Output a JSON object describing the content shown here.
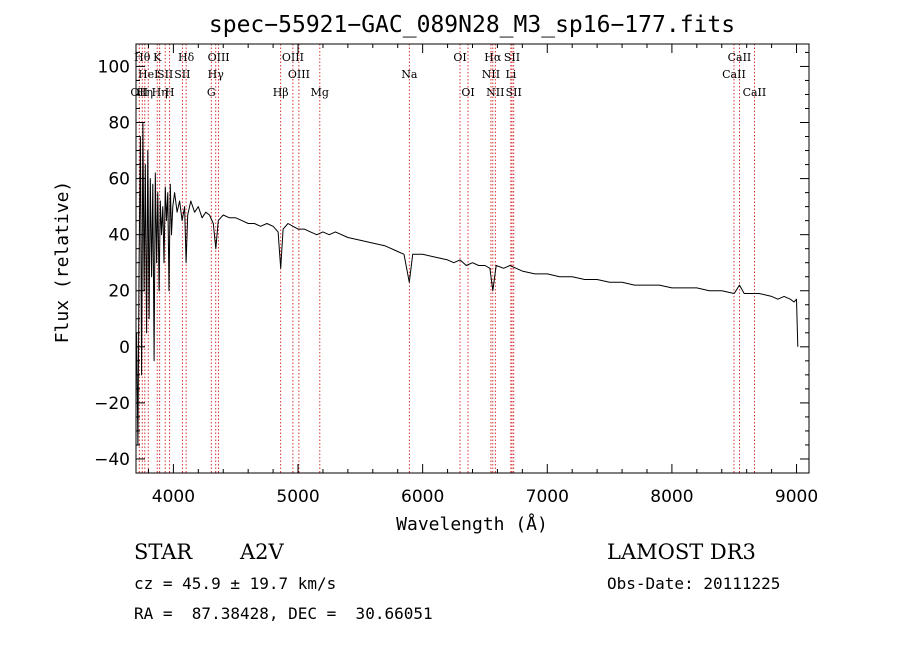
{
  "chart_data": {
    "type": "line",
    "title": "spec−55921−GAC_089N28_M3_sp16−177.fits",
    "xlabel": "Wavelength (Å)",
    "ylabel": "Flux (relative)",
    "xlim": [
      3700,
      9100
    ],
    "ylim": [
      -45,
      108
    ],
    "xticks": [
      4000,
      5000,
      6000,
      7000,
      8000,
      9000
    ],
    "yticks": [
      -40,
      -20,
      0,
      20,
      40,
      60,
      80,
      100
    ],
    "yticks_labels": [
      "−40",
      "−20",
      "0",
      "20",
      "40",
      "60",
      "80",
      "100"
    ],
    "series": [
      {
        "name": "flux",
        "x": [
          3705,
          3715,
          3725,
          3735,
          3745,
          3755,
          3765,
          3775,
          3785,
          3795,
          3805,
          3815,
          3825,
          3835,
          3845,
          3855,
          3865,
          3875,
          3885,
          3895,
          3905,
          3915,
          3925,
          3935,
          3945,
          3955,
          3965,
          3975,
          3985,
          3995,
          4010,
          4030,
          4050,
          4070,
          4090,
          4102,
          4115,
          4140,
          4170,
          4200,
          4230,
          4260,
          4290,
          4320,
          4340,
          4360,
          4380,
          4400,
          4450,
          4500,
          4550,
          4600,
          4650,
          4700,
          4750,
          4800,
          4840,
          4861,
          4880,
          4920,
          4960,
          5000,
          5050,
          5100,
          5150,
          5200,
          5250,
          5300,
          5400,
          5500,
          5600,
          5700,
          5800,
          5850,
          5893,
          5920,
          6000,
          6100,
          6200,
          6250,
          6300,
          6350,
          6400,
          6450,
          6500,
          6540,
          6563,
          6590,
          6650,
          6700,
          6750,
          6800,
          6900,
          7000,
          7100,
          7200,
          7300,
          7400,
          7500,
          7600,
          7700,
          7800,
          7900,
          8000,
          8100,
          8200,
          8300,
          8400,
          8500,
          8542,
          8580,
          8662,
          8700,
          8800,
          8850,
          8900,
          8950,
          8980,
          9000,
          9010
        ],
        "values": [
          5,
          -35,
          30,
          75,
          -10,
          80,
          20,
          65,
          5,
          70,
          10,
          60,
          25,
          58,
          -5,
          62,
          30,
          55,
          20,
          52,
          40,
          50,
          30,
          57,
          45,
          55,
          20,
          58,
          40,
          50,
          55,
          48,
          52,
          45,
          50,
          30,
          47,
          52,
          48,
          50,
          46,
          48,
          47,
          44,
          35,
          45,
          46,
          47,
          46,
          46,
          45,
          44,
          44,
          43,
          44,
          43,
          41,
          28,
          42,
          44,
          43,
          42,
          42,
          41,
          40,
          41,
          40,
          41,
          39,
          38,
          37,
          36,
          34,
          33,
          23,
          33,
          33,
          32,
          31,
          30,
          31,
          29,
          30,
          29,
          29,
          28,
          20,
          29,
          28,
          29,
          28,
          27,
          26,
          26,
          25,
          25,
          24,
          24,
          23,
          23,
          22,
          22,
          22,
          21,
          21,
          21,
          20,
          20,
          19,
          22,
          19,
          19,
          19,
          18,
          17,
          18,
          17,
          16,
          17,
          0
        ]
      }
    ],
    "line_markers": [
      {
        "x": 3726,
        "label": "OII",
        "row": 3
      },
      {
        "x": 3750,
        "label": "Hθ",
        "row": 1
      },
      {
        "x": 3771,
        "label": "Hη",
        "row": 3
      },
      {
        "x": 3798,
        "label": "HeI",
        "row": 2
      },
      {
        "x": 3870,
        "label": "K",
        "row": 1
      },
      {
        "x": 3890,
        "label": "Hη",
        "row": 3
      },
      {
        "x": 3934,
        "label": "SII",
        "row": 2
      },
      {
        "x": 3970,
        "label": "H",
        "row": 3
      },
      {
        "x": 4072,
        "label": "SII",
        "row": 2
      },
      {
        "x": 4102,
        "label": "Hδ",
        "row": 1
      },
      {
        "x": 4304,
        "label": "G",
        "row": 3
      },
      {
        "x": 4340,
        "label": "Hγ",
        "row": 2
      },
      {
        "x": 4363,
        "label": "OIII",
        "row": 1
      },
      {
        "x": 4861,
        "label": "Hβ",
        "row": 3
      },
      {
        "x": 4959,
        "label": "OIII",
        "row": 1
      },
      {
        "x": 5007,
        "label": "OIII",
        "row": 2
      },
      {
        "x": 5175,
        "label": "Mg",
        "row": 3
      },
      {
        "x": 5893,
        "label": "Na",
        "row": 2
      },
      {
        "x": 6300,
        "label": "OI",
        "row": 1
      },
      {
        "x": 6364,
        "label": "OI",
        "row": 3
      },
      {
        "x": 6548,
        "label": "NII",
        "row": 2
      },
      {
        "x": 6563,
        "label": "Hα",
        "row": 1
      },
      {
        "x": 6583,
        "label": "NII",
        "row": 3
      },
      {
        "x": 6708,
        "label": "Li",
        "row": 2
      },
      {
        "x": 6717,
        "label": "SII",
        "row": 1
      },
      {
        "x": 6731,
        "label": "SII",
        "row": 3
      },
      {
        "x": 8498,
        "label": "CaII",
        "row": 2
      },
      {
        "x": 8542,
        "label": "CaII",
        "row": 1
      },
      {
        "x": 8662,
        "label": "CaII",
        "row": 3
      }
    ],
    "colors": {
      "flux": "#000000",
      "line_marker": "#cc0000",
      "axes": "#000000"
    }
  },
  "info": {
    "object_class": "STAR",
    "subclass": "A2V",
    "survey": "LAMOST DR3",
    "cz": "cz = 45.9 ± 19.7 km/s",
    "obs_date": "Obs-Date: 20111225",
    "coords": "RA =  87.38428, DEC =  30.66051"
  }
}
